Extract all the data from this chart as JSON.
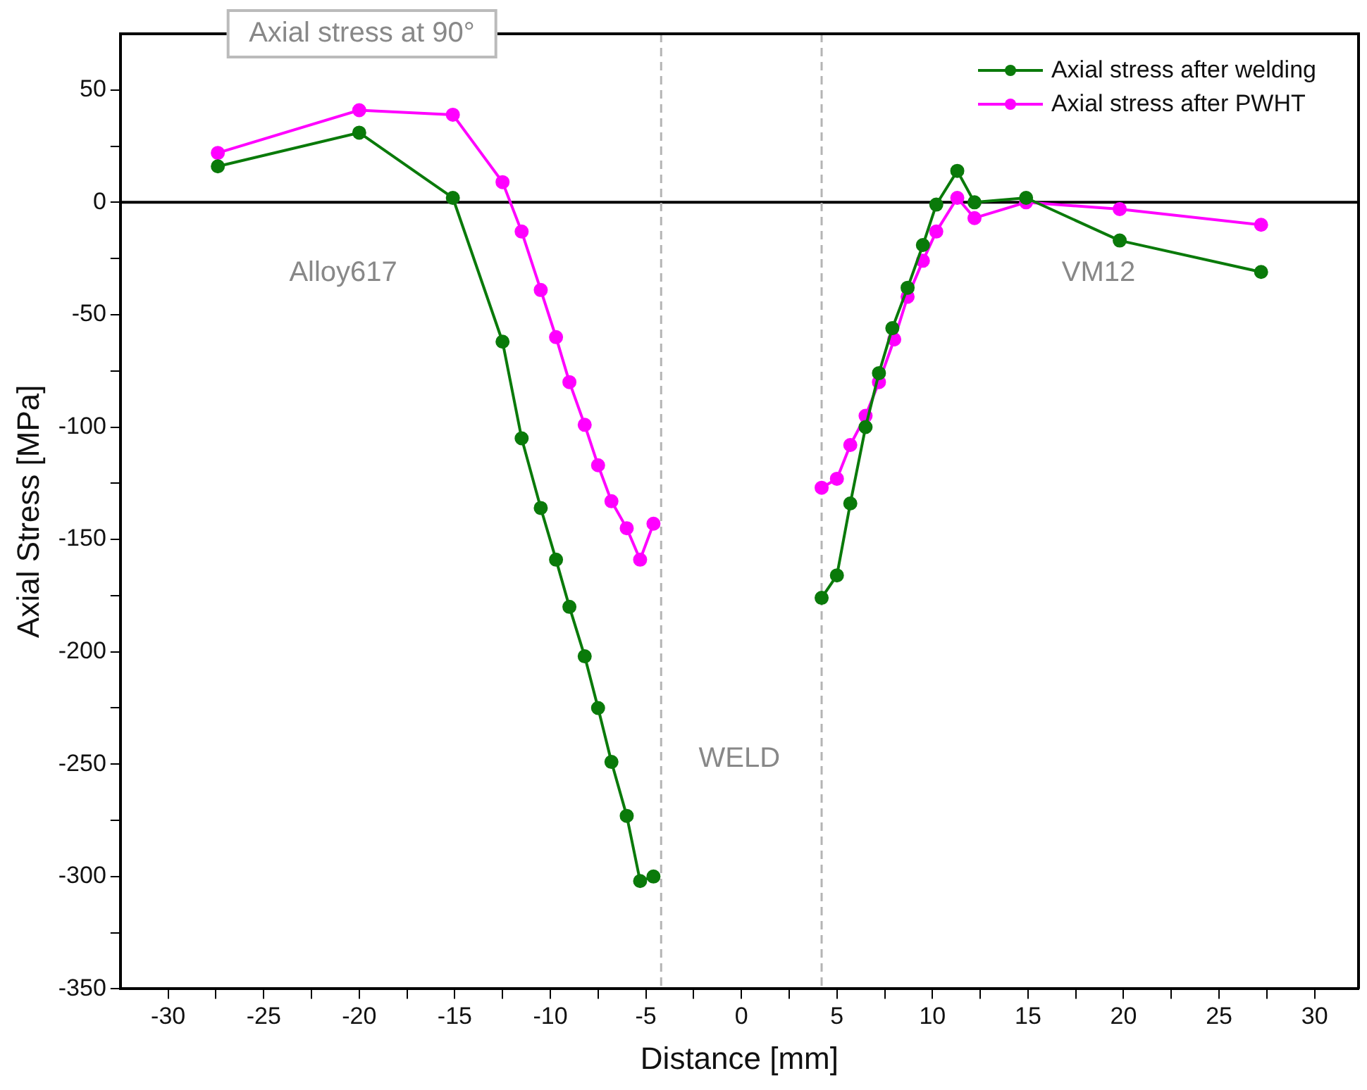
{
  "chart_data": {
    "type": "line",
    "xlabel": "Distance [mm]",
    "ylabel": "Axial Stress [MPa]",
    "xlim": [
      -32.5,
      32.3
    ],
    "ylim": [
      -350,
      75
    ],
    "xticks": [
      {
        "value": -30,
        "label": "-30"
      },
      {
        "value": -27.5,
        "label": null
      },
      {
        "value": -25,
        "label": "-25"
      },
      {
        "value": -22.5,
        "label": null
      },
      {
        "value": -20,
        "label": "-20"
      },
      {
        "value": -17.5,
        "label": null
      },
      {
        "value": -15,
        "label": "-15"
      },
      {
        "value": -12.5,
        "label": null
      },
      {
        "value": -10,
        "label": "-10"
      },
      {
        "value": -7.5,
        "label": null
      },
      {
        "value": -5,
        "label": "-5"
      },
      {
        "value": -2.5,
        "label": null
      },
      0,
      {
        "value": 2.5,
        "label": null
      },
      5,
      {
        "value": 7.5,
        "label": null
      },
      10,
      {
        "value": 12.5,
        "label": null
      },
      15,
      {
        "value": 17.5,
        "label": null
      },
      20,
      {
        "value": 22.5,
        "label": null
      },
      25,
      {
        "value": 27.5,
        "label": null
      },
      30
    ],
    "yticks": [
      {
        "value": -350,
        "label": "-350"
      },
      {
        "value": -325,
        "label": null
      },
      {
        "value": -300,
        "label": "-300"
      },
      {
        "value": -275,
        "label": null
      },
      {
        "value": -250,
        "label": "-250"
      },
      {
        "value": -225,
        "label": null
      },
      {
        "value": -200,
        "label": "-200"
      },
      {
        "value": -175,
        "label": null
      },
      {
        "value": -150,
        "label": "-150"
      },
      {
        "value": -125,
        "label": null
      },
      {
        "value": -100,
        "label": "-100"
      },
      {
        "value": -75,
        "label": null
      },
      {
        "value": -50,
        "label": "-50"
      },
      {
        "value": -25,
        "label": null
      },
      0,
      {
        "value": 25,
        "label": null
      },
      50
    ],
    "grid": false,
    "legend": "top right",
    "marker": "circle",
    "line_style": "solid",
    "series": [
      {
        "name": "Axial stress after welding",
        "color": "#0a7a0a",
        "x": [
          -27.4,
          -20.0,
          -15.1,
          -12.5,
          -11.5,
          -10.5,
          -9.7,
          -9.0,
          -8.2,
          -7.5,
          -6.8,
          -6.0,
          -5.3,
          -4.6,
          0,
          4.2,
          5.0,
          5.7,
          6.5,
          7.2,
          7.9,
          8.7,
          9.5,
          10.2,
          11.3,
          12.2,
          14.9,
          19.8,
          27.2
        ],
        "values": [
          16,
          31,
          2,
          -62,
          -105,
          -136,
          -159,
          -180,
          -202,
          -225,
          -249,
          -273,
          -302,
          -300,
          null,
          -176,
          -166,
          -134,
          -100,
          -76,
          -56,
          -38,
          -19,
          -1,
          14,
          0,
          2,
          -17,
          -31
        ]
      },
      {
        "name": "Axial stress after PWHT",
        "color": "#ff00ff",
        "x": [
          -27.4,
          -20.0,
          -15.1,
          -12.5,
          -11.5,
          -10.5,
          -9.7,
          -9.0,
          -8.2,
          -7.5,
          -6.8,
          -6.0,
          -5.3,
          -4.6,
          0,
          4.2,
          5.0,
          5.7,
          6.5,
          7.2,
          8.0,
          8.7,
          9.5,
          10.2,
          11.3,
          12.2,
          14.9,
          19.8,
          27.2
        ],
        "values": [
          22,
          41,
          39,
          9,
          -13,
          -39,
          -60,
          -80,
          -99,
          -117,
          -133,
          -145,
          -159,
          -143,
          null,
          -127,
          -123,
          -108,
          -95,
          -80,
          -61,
          -42,
          -26,
          -13,
          2,
          -7,
          0,
          -3,
          -10
        ]
      }
    ],
    "ref_lines": [
      {
        "axis": "y",
        "value": 0,
        "color": "#000000",
        "line_style": "solid"
      },
      {
        "axis": "x",
        "value": -4.2,
        "color": "#b4b4b4",
        "line_style": "dashed"
      },
      {
        "axis": "x",
        "value": 4.2,
        "color": "#b4b4b4",
        "line_style": "dashed"
      }
    ],
    "annotations": [
      "Axial stress at 90°",
      "Alloy617",
      "WELD",
      "VM12"
    ]
  }
}
